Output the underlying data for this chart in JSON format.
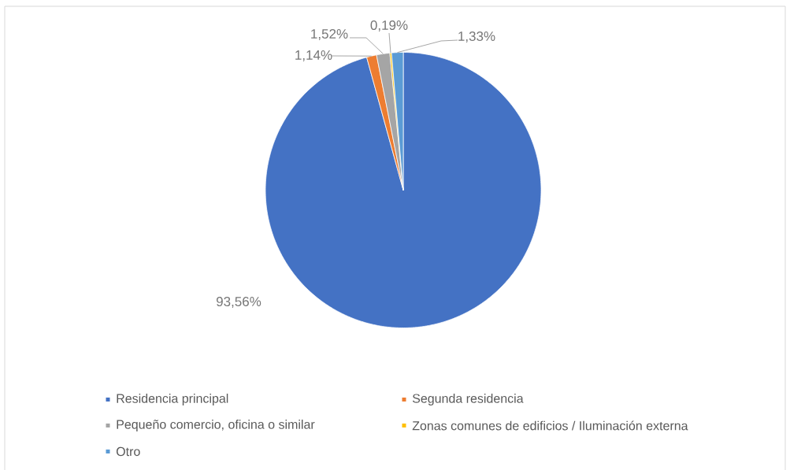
{
  "chart_data": {
    "type": "pie",
    "categories": [
      "Residencia principal",
      "Segunda residencia",
      "Pequeño comercio, oficina o similar",
      "Zonas comunes de edificios / Iluminación externa",
      "Otro"
    ],
    "values": [
      93.56,
      1.14,
      1.52,
      0.19,
      1.33
    ],
    "colors": [
      "#4472c4",
      "#ed7d31",
      "#a5a5a5",
      "#ffc000",
      "#5b9bd5"
    ],
    "value_labels": [
      "93,56%",
      "1,14%",
      "1,52%",
      "0,19%",
      "1,33%"
    ],
    "legend": "bottom"
  }
}
